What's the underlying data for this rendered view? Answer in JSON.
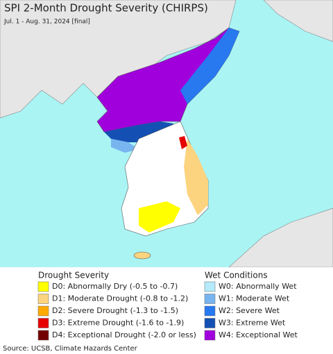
{
  "header": {
    "title": "SPI 2-Month Drought Severity (CHIRPS)",
    "subtitle": "Jul. 1 - Aug. 31, 2024 [final]"
  },
  "legend": {
    "drought": {
      "title": "Drought Severity",
      "items": [
        {
          "label": "D0: Abnormally Dry (-0.5 to -0.7)",
          "color": "#ffff00"
        },
        {
          "label": "D1: Moderate Drought (-0.8 to -1.2)",
          "color": "#fcd37f"
        },
        {
          "label": "D2: Severe Drought (-1.3 to -1.5)",
          "color": "#ffaa00"
        },
        {
          "label": "D3: Extreme Drought (-1.6 to -1.9)",
          "color": "#e60000"
        },
        {
          "label": "D4: Exceptional Drought (-2.0 or less)",
          "color": "#730000"
        }
      ]
    },
    "wet": {
      "title": "Wet Conditions",
      "items": [
        {
          "label": "W0: Abnormally Wet",
          "color": "#b4eafa"
        },
        {
          "label": "W1: Moderate Wet",
          "color": "#78b4f0"
        },
        {
          "label": "W2: Severe Wet",
          "color": "#2878f0"
        },
        {
          "label": "W3: Extreme Wet",
          "color": "#1450b4"
        },
        {
          "label": "W4: Exceptional Wet",
          "color": "#a000dc"
        }
      ]
    }
  },
  "footer": {
    "source": "Source: UCSB, Climate Hazards Center"
  }
}
